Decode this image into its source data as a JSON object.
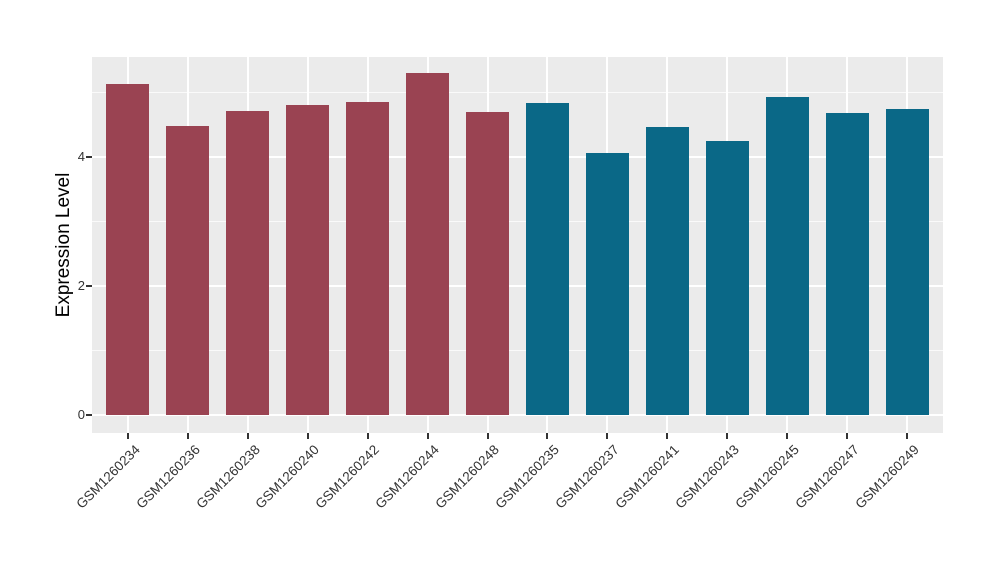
{
  "chart_data": {
    "type": "bar",
    "title": "",
    "xlabel": "",
    "ylabel": "Expression Level",
    "ylim": [
      -0.28,
      5.55
    ],
    "y_major_ticks": [
      0,
      2,
      4
    ],
    "y_minor_gridlines": [
      1,
      3,
      5
    ],
    "grid": true,
    "legend": "none",
    "panel_background": "#EBEBEB",
    "grid_color": "#FFFFFF",
    "tick_color": "#333333",
    "palette": {
      "maroon": "#9A4352",
      "teal": "#0A6887"
    },
    "categories": [
      "GSM1260234",
      "GSM1260236",
      "GSM1260238",
      "GSM1260240",
      "GSM1260242",
      "GSM1260244",
      "GSM1260248",
      "GSM1260235",
      "GSM1260237",
      "GSM1260241",
      "GSM1260243",
      "GSM1260245",
      "GSM1260247",
      "GSM1260249"
    ],
    "bars": [
      {
        "label": "GSM1260234",
        "value": 5.13,
        "group": "maroon"
      },
      {
        "label": "GSM1260236",
        "value": 4.48,
        "group": "maroon"
      },
      {
        "label": "GSM1260238",
        "value": 4.72,
        "group": "maroon"
      },
      {
        "label": "GSM1260240",
        "value": 4.8,
        "group": "maroon"
      },
      {
        "label": "GSM1260242",
        "value": 4.86,
        "group": "maroon"
      },
      {
        "label": "GSM1260244",
        "value": 5.3,
        "group": "maroon"
      },
      {
        "label": "GSM1260248",
        "value": 4.7,
        "group": "maroon"
      },
      {
        "label": "GSM1260235",
        "value": 4.83,
        "group": "teal"
      },
      {
        "label": "GSM1260237",
        "value": 4.06,
        "group": "teal"
      },
      {
        "label": "GSM1260241",
        "value": 4.46,
        "group": "teal"
      },
      {
        "label": "GSM1260243",
        "value": 4.24,
        "group": "teal"
      },
      {
        "label": "GSM1260245",
        "value": 4.93,
        "group": "teal"
      },
      {
        "label": "GSM1260247",
        "value": 4.68,
        "group": "teal"
      },
      {
        "label": "GSM1260249",
        "value": 4.75,
        "group": "teal"
      }
    ]
  }
}
